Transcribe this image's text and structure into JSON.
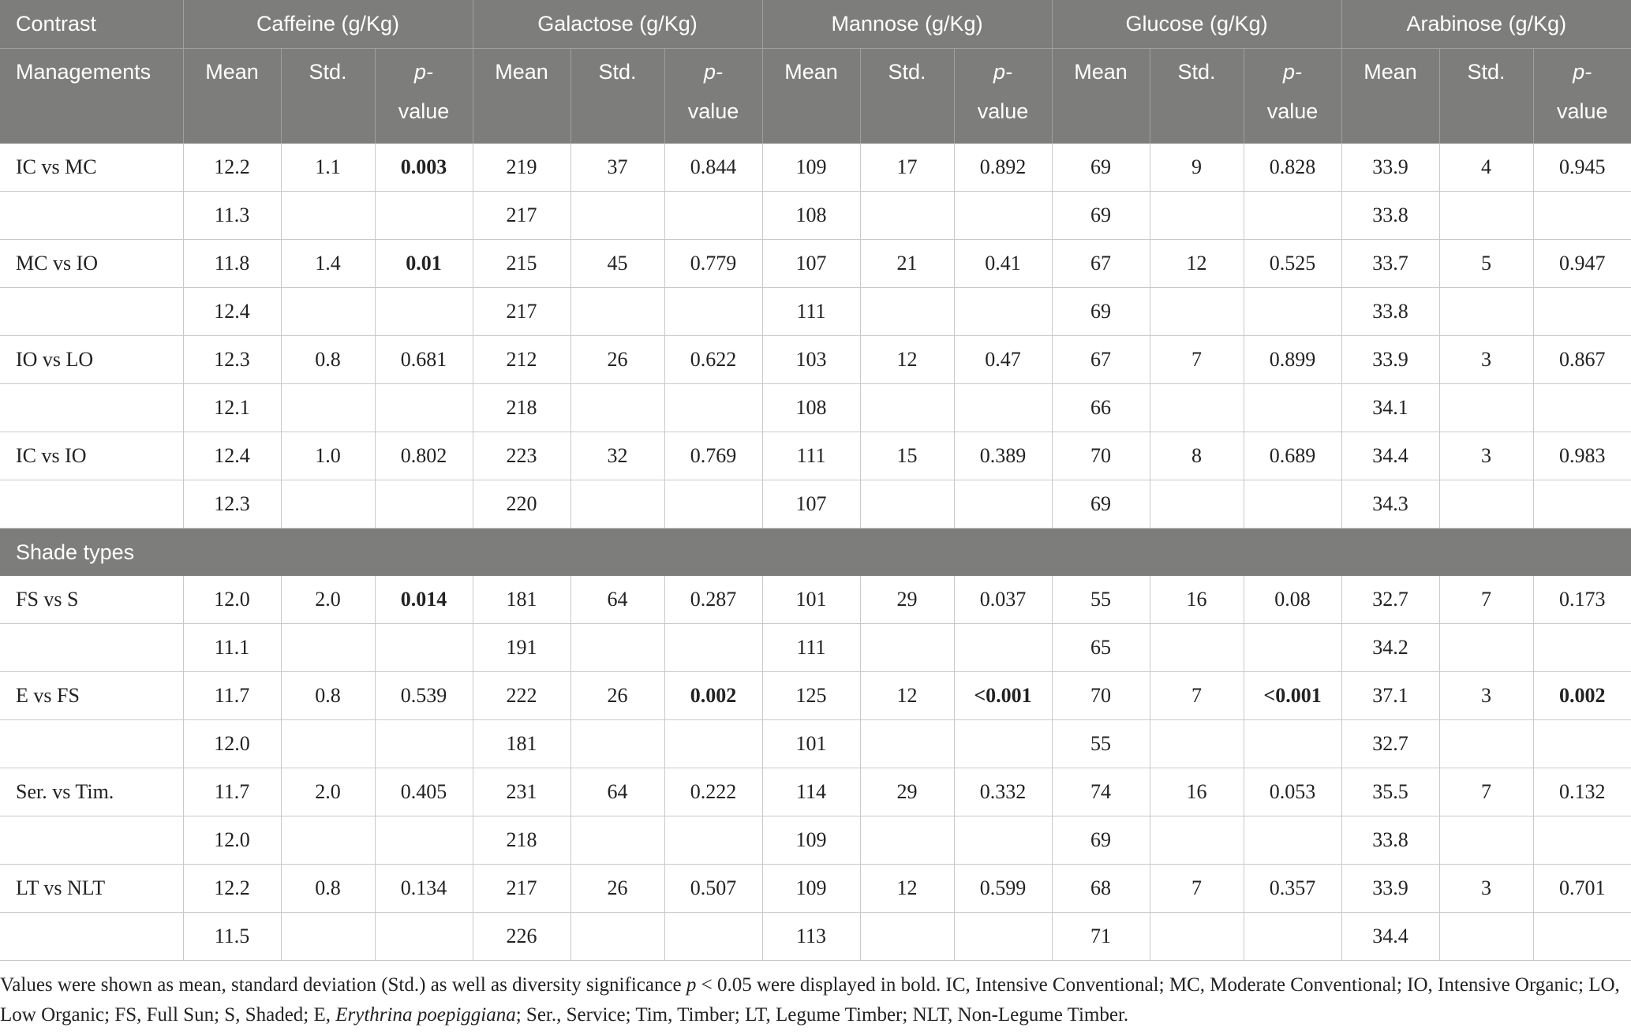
{
  "header": {
    "row1": {
      "contrast": "Contrast",
      "groups": [
        "Caffeine (g/Kg)",
        "Galactose (g/Kg)",
        "Mannose (g/Kg)",
        "Glucose (g/Kg)",
        "Arabinose (g/Kg)"
      ]
    },
    "row2": {
      "managements": "Managements",
      "mean": "Mean",
      "std": "Std.",
      "p_line1": "p-",
      "p_line2": "value"
    }
  },
  "sections": [
    {
      "title": "",
      "rows": [
        {
          "label": "IC vs MC",
          "cells": [
            "12.2",
            "1.1",
            "0.003",
            "219",
            "37",
            "0.844",
            "109",
            "17",
            "0.892",
            "69",
            "9",
            "0.828",
            "33.9",
            "4",
            "0.945"
          ],
          "bold": [
            2
          ]
        },
        {
          "label": "",
          "cells": [
            "11.3",
            "",
            "",
            "217",
            "",
            "",
            "108",
            "",
            "",
            "69",
            "",
            "",
            "33.8",
            "",
            ""
          ],
          "bold": []
        },
        {
          "label": "MC vs IO",
          "cells": [
            "11.8",
            "1.4",
            "0.01",
            "215",
            "45",
            "0.779",
            "107",
            "21",
            "0.41",
            "67",
            "12",
            "0.525",
            "33.7",
            "5",
            "0.947"
          ],
          "bold": [
            2
          ]
        },
        {
          "label": "",
          "cells": [
            "12.4",
            "",
            "",
            "217",
            "",
            "",
            "111",
            "",
            "",
            "69",
            "",
            "",
            "33.8",
            "",
            ""
          ],
          "bold": []
        },
        {
          "label": "IO vs LO",
          "cells": [
            "12.3",
            "0.8",
            "0.681",
            "212",
            "26",
            "0.622",
            "103",
            "12",
            "0.47",
            "67",
            "7",
            "0.899",
            "33.9",
            "3",
            "0.867"
          ],
          "bold": []
        },
        {
          "label": "",
          "cells": [
            "12.1",
            "",
            "",
            "218",
            "",
            "",
            "108",
            "",
            "",
            "66",
            "",
            "",
            "34.1",
            "",
            ""
          ],
          "bold": []
        },
        {
          "label": "IC vs IO",
          "cells": [
            "12.4",
            "1.0",
            "0.802",
            "223",
            "32",
            "0.769",
            "111",
            "15",
            "0.389",
            "70",
            "8",
            "0.689",
            "34.4",
            "3",
            "0.983"
          ],
          "bold": []
        },
        {
          "label": "",
          "cells": [
            "12.3",
            "",
            "",
            "220",
            "",
            "",
            "107",
            "",
            "",
            "69",
            "",
            "",
            "34.3",
            "",
            ""
          ],
          "bold": []
        }
      ]
    },
    {
      "title": "Shade types",
      "rows": [
        {
          "label": "FS vs S",
          "cells": [
            "12.0",
            "2.0",
            "0.014",
            "181",
            "64",
            "0.287",
            "101",
            "29",
            "0.037",
            "55",
            "16",
            "0.08",
            "32.7",
            "7",
            "0.173"
          ],
          "bold": [
            2
          ]
        },
        {
          "label": "",
          "cells": [
            "11.1",
            "",
            "",
            "191",
            "",
            "",
            "111",
            "",
            "",
            "65",
            "",
            "",
            "34.2",
            "",
            ""
          ],
          "bold": []
        },
        {
          "label": "E vs FS",
          "cells": [
            "11.7",
            "0.8",
            "0.539",
            "222",
            "26",
            "0.002",
            "125",
            "12",
            "<0.001",
            "70",
            "7",
            "<0.001",
            "37.1",
            "3",
            "0.002"
          ],
          "bold": [
            5,
            8,
            11,
            14
          ]
        },
        {
          "label": "",
          "cells": [
            "12.0",
            "",
            "",
            "181",
            "",
            "",
            "101",
            "",
            "",
            "55",
            "",
            "",
            "32.7",
            "",
            ""
          ],
          "bold": []
        },
        {
          "label": "Ser. vs Tim.",
          "cells": [
            "11.7",
            "2.0",
            "0.405",
            "231",
            "64",
            "0.222",
            "114",
            "29",
            "0.332",
            "74",
            "16",
            "0.053",
            "35.5",
            "7",
            "0.132"
          ],
          "bold": []
        },
        {
          "label": "",
          "cells": [
            "12.0",
            "",
            "",
            "218",
            "",
            "",
            "109",
            "",
            "",
            "69",
            "",
            "",
            "33.8",
            "",
            ""
          ],
          "bold": []
        },
        {
          "label": "LT vs NLT",
          "cells": [
            "12.2",
            "0.8",
            "0.134",
            "217",
            "26",
            "0.507",
            "109",
            "12",
            "0.599",
            "68",
            "7",
            "0.357",
            "33.9",
            "3",
            "0.701"
          ],
          "bold": []
        },
        {
          "label": "",
          "cells": [
            "11.5",
            "",
            "",
            "226",
            "",
            "",
            "113",
            "",
            "",
            "71",
            "",
            "",
            "34.4",
            "",
            ""
          ],
          "bold": []
        }
      ]
    }
  ],
  "footnote": {
    "part1": "Values were shown as mean, standard deviation (Std.) as well as diversity significance ",
    "p": "p",
    "part2": " < 0.05 were displayed in bold. IC, Intensive Conventional; MC, Moderate Conventional; IO, Intensive Organic; LO, Low Organic; FS, Full Sun; S, Shaded; E, ",
    "species": "Erythrina poepiggiana",
    "part3": "; Ser., Service; Tim, Timber; LT, Legume Timber; NLT, Non-Legume Timber."
  }
}
